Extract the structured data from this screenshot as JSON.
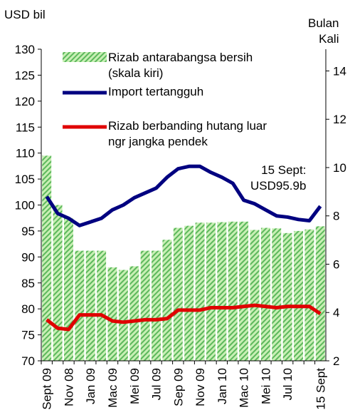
{
  "chart_data": {
    "type": "bar",
    "y_label": "USD bil",
    "y2_label": "Bulan\nKali",
    "annotation": "15 Sept:\nUSD95.9b",
    "categories": [
      "Sept 09",
      null,
      "Nov 08",
      null,
      "Jan 09",
      null,
      "Mac 09",
      null,
      "Mei 09",
      null,
      "Jul 09",
      null,
      "Sep 09",
      null,
      "Nov 09",
      null,
      "Jan 10",
      null,
      "Mac 10",
      null,
      "Mei 10",
      null,
      "Jul 10",
      null,
      null,
      "15 Sept"
    ],
    "series": [
      {
        "name": "Rizab antarabangsa bersih\n(skala kiri)",
        "type": "bar",
        "color": "#5cb85c",
        "values": [
          109.5,
          100,
          97.5,
          91.2,
          91.2,
          91.2,
          88,
          87.5,
          88.2,
          91.2,
          91.2,
          93.3,
          95.6,
          96,
          96.6,
          96.6,
          96.7,
          96.8,
          96.8,
          95.2,
          95.6,
          95.5,
          94.6,
          95,
          95.3,
          95.9
        ]
      },
      {
        "name": "Import tertangguh",
        "type": "line",
        "axis": "y2",
        "color": "#000080",
        "values": [
          8.8,
          8.1,
          7.9,
          7.6,
          7.75,
          7.9,
          8.25,
          8.45,
          8.75,
          8.95,
          9.15,
          9.6,
          9.95,
          10.05,
          10.05,
          9.8,
          9.6,
          9.35,
          8.65,
          8.5,
          8.25,
          8.0,
          7.95,
          7.85,
          7.8,
          8.4
        ]
      },
      {
        "name": "Rizab berbanding hutang luar\nngr jangka pendek",
        "type": "line",
        "axis": "y2",
        "color": "#e00000",
        "values": [
          3.7,
          3.35,
          3.3,
          3.9,
          3.9,
          3.9,
          3.65,
          3.6,
          3.65,
          3.7,
          3.7,
          3.75,
          4.1,
          4.1,
          4.1,
          4.2,
          4.2,
          4.2,
          4.25,
          4.3,
          4.25,
          4.2,
          4.25,
          4.25,
          4.25,
          3.95
        ]
      }
    ],
    "ylim": [
      70,
      130
    ],
    "yticks": [
      70,
      75,
      80,
      85,
      90,
      95,
      100,
      105,
      110,
      115,
      120,
      125,
      130
    ],
    "y2lim": [
      2,
      14.9
    ],
    "y2ticks": [
      2,
      4,
      6,
      8,
      10,
      12,
      14
    ]
  }
}
